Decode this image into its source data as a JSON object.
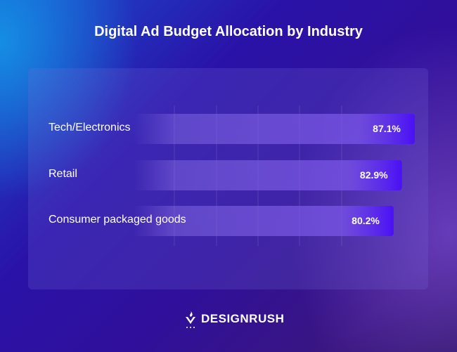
{
  "chart_data": {
    "type": "bar",
    "orientation": "horizontal",
    "title": "Digital Ad Budget Allocation by Industry",
    "categories": [
      "Tech/Electronics",
      "Retail",
      "Consumer packaged goods"
    ],
    "values": [
      87.1,
      82.9,
      80.2
    ],
    "value_labels": [
      "87.1%",
      "82.9%",
      "80.2%"
    ],
    "grid": true,
    "bar_color": "#4a10f5"
  },
  "brand": {
    "name": "DESIGNRUSH"
  }
}
